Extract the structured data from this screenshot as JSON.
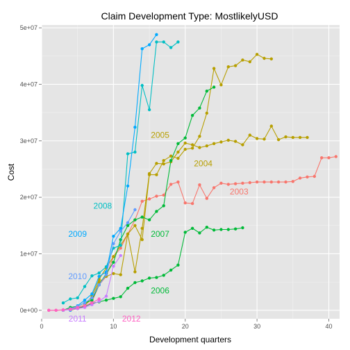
{
  "chart_data": {
    "type": "line",
    "title": "Claim Development  Type: MostlikelyUSD",
    "xlabel": "Development quarters",
    "ylabel": "Cost",
    "xlim": [
      0,
      41.5
    ],
    "ylim": [
      -1500000,
      50500000
    ],
    "x_ticks": [
      0,
      10,
      20,
      30,
      40
    ],
    "x_tick_labels": [
      "0",
      "10",
      "20",
      "30",
      "40"
    ],
    "y_ticks": [
      0,
      10000000,
      20000000,
      30000000,
      40000000,
      50000000
    ],
    "y_tick_labels": [
      "0e+00",
      "1e+07",
      "2e+07",
      "3e+07",
      "4e+07",
      "5e+07"
    ],
    "grid": true,
    "legend": "none",
    "series": [
      {
        "name": "2003",
        "color": "#F8766D",
        "label": {
          "text": "2003",
          "x": 27.5,
          "y": 21000000
        },
        "points": [
          [
            1,
            0
          ],
          [
            2,
            0
          ],
          [
            3,
            50000
          ],
          [
            4,
            150000
          ],
          [
            5,
            300000
          ],
          [
            6,
            600000
          ],
          [
            7,
            1500000
          ],
          [
            8,
            4500000
          ],
          [
            9,
            6000000
          ],
          [
            10,
            9500000
          ],
          [
            11,
            11000000
          ],
          [
            12,
            13500000
          ],
          [
            13,
            16000000
          ],
          [
            14,
            19300000
          ],
          [
            15,
            19700000
          ],
          [
            16,
            20200000
          ],
          [
            17,
            20400000
          ],
          [
            18,
            22300000
          ],
          [
            19,
            22700000
          ],
          [
            20,
            19000000
          ],
          [
            21,
            18900000
          ],
          [
            22,
            22200000
          ],
          [
            23,
            19800000
          ],
          [
            24,
            21700000
          ],
          [
            25,
            22500000
          ],
          [
            26,
            22300000
          ],
          [
            27,
            22400000
          ],
          [
            28,
            22500000
          ],
          [
            29,
            22600000
          ],
          [
            30,
            22700000
          ],
          [
            31,
            22700000
          ],
          [
            32,
            22700000
          ],
          [
            33,
            22700000
          ],
          [
            34,
            22700000
          ],
          [
            35,
            22800000
          ],
          [
            36,
            23400000
          ],
          [
            37,
            23600000
          ],
          [
            38,
            23700000
          ],
          [
            39,
            27000000
          ],
          [
            40,
            27000000
          ],
          [
            41,
            27200000
          ]
        ]
      },
      {
        "name": "2004",
        "color": "#B79F00",
        "label": {
          "text": "2004",
          "x": 22.5,
          "y": 26000000
        },
        "points": [
          [
            3,
            0
          ],
          [
            4,
            200000
          ],
          [
            5,
            500000
          ],
          [
            6,
            900000
          ],
          [
            7,
            2000000
          ],
          [
            8,
            5000000
          ],
          [
            9,
            6000000
          ],
          [
            10,
            6500000
          ],
          [
            11,
            6300000
          ],
          [
            12,
            13500000
          ],
          [
            13,
            6800000
          ],
          [
            14,
            14500000
          ],
          [
            15,
            24200000
          ],
          [
            16,
            26000000
          ],
          [
            17,
            25900000
          ],
          [
            18,
            26300000
          ],
          [
            19,
            28000000
          ],
          [
            20,
            29600000
          ],
          [
            21,
            29300000
          ],
          [
            22,
            28800000
          ],
          [
            23,
            29100000
          ],
          [
            24,
            29500000
          ],
          [
            25,
            29800000
          ],
          [
            26,
            30100000
          ],
          [
            27,
            29900000
          ],
          [
            28,
            29300000
          ],
          [
            29,
            31000000
          ],
          [
            30,
            30400000
          ],
          [
            31,
            30300000
          ],
          [
            32,
            32600000
          ],
          [
            33,
            30200000
          ],
          [
            34,
            30700000
          ],
          [
            35,
            30600000
          ],
          [
            36,
            30600000
          ],
          [
            37,
            30600000
          ]
        ]
      },
      {
        "name": "2005",
        "color": "#B79F00",
        "label": {
          "text": "2005",
          "x": 16.5,
          "y": 31000000
        },
        "points": [
          [
            4,
            0
          ],
          [
            5,
            300000
          ],
          [
            6,
            800000
          ],
          [
            7,
            2500000
          ],
          [
            8,
            5500000
          ],
          [
            9,
            7500000
          ],
          [
            10,
            9500000
          ],
          [
            11,
            11500000
          ],
          [
            12,
            13500000
          ],
          [
            13,
            15000000
          ],
          [
            14,
            12500000
          ],
          [
            15,
            24000000
          ],
          [
            16,
            24000000
          ],
          [
            17,
            26500000
          ],
          [
            18,
            27300000
          ],
          [
            19,
            26900000
          ],
          [
            20,
            28500000
          ],
          [
            21,
            28700000
          ],
          [
            22,
            30800000
          ],
          [
            23,
            34900000
          ],
          [
            24,
            42800000
          ],
          [
            25,
            39900000
          ],
          [
            26,
            43100000
          ],
          [
            27,
            43300000
          ],
          [
            28,
            44300000
          ],
          [
            29,
            44000000
          ],
          [
            30,
            45300000
          ],
          [
            31,
            44600000
          ],
          [
            32,
            44500000
          ]
        ]
      },
      {
        "name": "2006",
        "color": "#00BA38",
        "label": {
          "text": "2006",
          "x": 16.5,
          "y": 3500000
        },
        "points": [
          [
            3,
            0
          ],
          [
            4,
            200000
          ],
          [
            5,
            400000
          ],
          [
            6,
            700000
          ],
          [
            7,
            1200000
          ],
          [
            8,
            1500000
          ],
          [
            9,
            1800000
          ],
          [
            10,
            2100000
          ],
          [
            11,
            2400000
          ],
          [
            12,
            3900000
          ],
          [
            13,
            4900000
          ],
          [
            14,
            5200000
          ],
          [
            15,
            5700000
          ],
          [
            16,
            5800000
          ],
          [
            17,
            6200000
          ],
          [
            18,
            7100000
          ],
          [
            19,
            8000000
          ],
          [
            20,
            13800000
          ],
          [
            21,
            14500000
          ],
          [
            22,
            13700000
          ],
          [
            23,
            14700000
          ],
          [
            24,
            14200000
          ],
          [
            25,
            14300000
          ],
          [
            26,
            14300000
          ],
          [
            27,
            14400000
          ],
          [
            28,
            14600000
          ]
        ]
      },
      {
        "name": "2007",
        "color": "#00BA38",
        "label": {
          "text": "2007",
          "x": 16.5,
          "y": 13500000
        },
        "points": [
          [
            3,
            0
          ],
          [
            4,
            500000
          ],
          [
            5,
            700000
          ],
          [
            6,
            1300000
          ],
          [
            7,
            1800000
          ],
          [
            8,
            4500000
          ],
          [
            9,
            6500000
          ],
          [
            10,
            8500000
          ],
          [
            11,
            12500000
          ],
          [
            12,
            15000000
          ],
          [
            13,
            16000000
          ],
          [
            14,
            16500000
          ],
          [
            15,
            16000000
          ],
          [
            16,
            17500000
          ],
          [
            17,
            18500000
          ],
          [
            18,
            26500000
          ],
          [
            19,
            29500000
          ],
          [
            20,
            30500000
          ],
          [
            21,
            34500000
          ],
          [
            22,
            35800000
          ],
          [
            23,
            38800000
          ],
          [
            24,
            39500000
          ]
        ]
      },
      {
        "name": "2008",
        "color": "#00BFC4",
        "label": {
          "text": "2008",
          "x": 8.5,
          "y": 18500000
        },
        "points": [
          [
            3,
            1300000
          ],
          [
            4,
            2000000
          ],
          [
            5,
            2200000
          ],
          [
            6,
            4200000
          ],
          [
            7,
            6100000
          ],
          [
            8,
            6600000
          ],
          [
            9,
            7700000
          ],
          [
            10,
            11000000
          ],
          [
            11,
            11500000
          ],
          [
            12,
            27700000
          ],
          [
            13,
            28000000
          ],
          [
            14,
            39800000
          ],
          [
            15,
            35500000
          ],
          [
            16,
            47500000
          ],
          [
            17,
            47500000
          ],
          [
            18,
            46500000
          ],
          [
            19,
            47500000
          ]
        ]
      },
      {
        "name": "2009",
        "color": "#00A9FF",
        "label": {
          "text": "2009",
          "x": 5,
          "y": 13500000
        },
        "points": [
          [
            4,
            0
          ],
          [
            5,
            800000
          ],
          [
            6,
            1800000
          ],
          [
            7,
            2900000
          ],
          [
            8,
            6000000
          ],
          [
            9,
            6800000
          ],
          [
            10,
            13100000
          ],
          [
            11,
            14500000
          ],
          [
            12,
            22000000
          ],
          [
            13,
            32400000
          ],
          [
            14,
            46300000
          ],
          [
            15,
            47000000
          ],
          [
            16,
            48800000
          ]
        ]
      },
      {
        "name": "2010",
        "color": "#619CFF",
        "label": {
          "text": "2010",
          "x": 5,
          "y": 6000000
        },
        "points": [
          [
            3,
            0
          ],
          [
            4,
            300000
          ],
          [
            5,
            700000
          ],
          [
            6,
            1300000
          ],
          [
            7,
            2200000
          ],
          [
            8,
            4500000
          ],
          [
            9,
            6300000
          ],
          [
            10,
            11800000
          ],
          [
            11,
            14000000
          ],
          [
            12,
            15500000
          ],
          [
            13,
            17800000
          ]
        ]
      },
      {
        "name": "2011",
        "color": "#C77CFF",
        "label": {
          "text": "2011",
          "x": 5,
          "y": -1500000
        },
        "points": [
          [
            3,
            0
          ],
          [
            4,
            100000
          ],
          [
            5,
            300000
          ],
          [
            6,
            500000
          ],
          [
            7,
            1000000
          ],
          [
            8,
            1600000
          ],
          [
            9,
            2500000
          ],
          [
            10,
            7800000
          ],
          [
            11,
            9700000
          ]
        ]
      },
      {
        "name": "2012",
        "color": "#FF61C3",
        "label": {
          "text": "2012",
          "x": 12.5,
          "y": -1500000
        },
        "points": [
          [
            1,
            0
          ],
          [
            2,
            0
          ],
          [
            3,
            100000
          ],
          [
            4,
            200000
          ],
          [
            5,
            500000
          ],
          [
            6,
            800000
          ],
          [
            7,
            1300000
          ],
          [
            8,
            2000000
          ]
        ]
      }
    ]
  }
}
